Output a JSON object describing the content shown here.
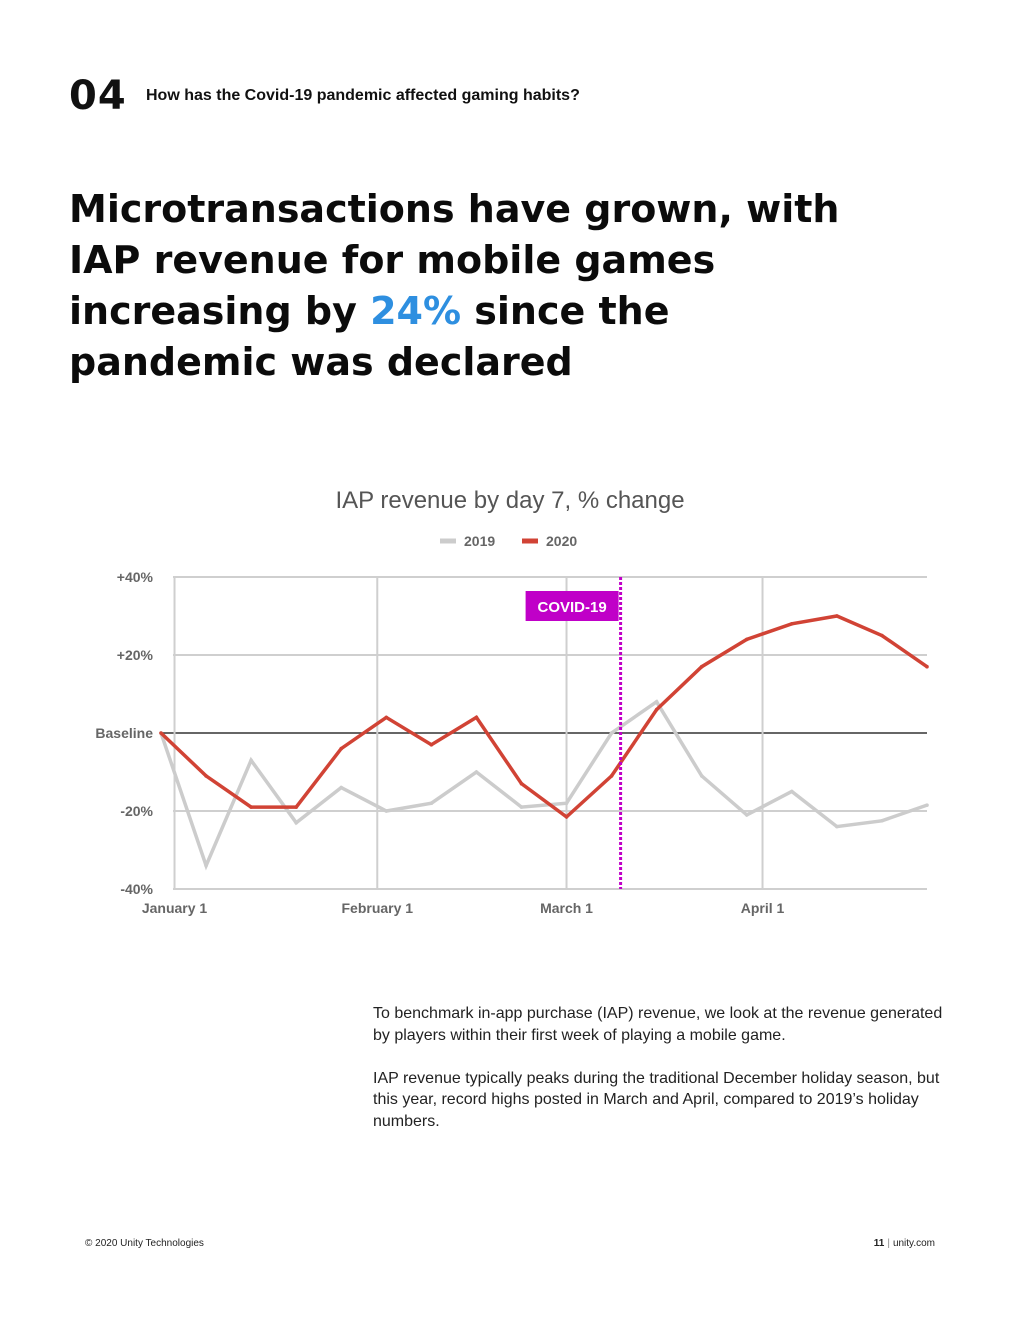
{
  "header": {
    "section_number": "04",
    "section_title": "How has the Covid-19 pandemic affected gaming habits?"
  },
  "headline": {
    "before": "Microtransactions have grown, with IAP revenue for mobile games increasing by ",
    "highlight": "24%",
    "after": " since the pandemic was declared"
  },
  "colors": {
    "accent": "#2e8fe0",
    "series_2019": "#cccccc",
    "series_2020": "#d14335",
    "covid_marker": "#c000c8"
  },
  "chart_data": {
    "type": "line",
    "title": "IAP revenue by day 7, % change",
    "xlabel": "",
    "ylabel": "",
    "ylim": [
      -40,
      40
    ],
    "xlim": [
      0,
      17
    ],
    "y_ticks": [
      {
        "value": 40,
        "label": "+40%"
      },
      {
        "value": 20,
        "label": "+20%"
      },
      {
        "value": 0,
        "label": "Baseline"
      },
      {
        "value": -20,
        "label": "-20%"
      },
      {
        "value": -40,
        "label": "-40%"
      }
    ],
    "x_ticks": [
      {
        "value": 0.3,
        "label": "January 1"
      },
      {
        "value": 4.8,
        "label": "February 1"
      },
      {
        "value": 9.0,
        "label": "March 1"
      },
      {
        "value": 13.35,
        "label": "April 1"
      }
    ],
    "x": [
      0,
      1,
      2,
      3,
      4,
      5,
      6,
      7,
      8,
      9,
      10,
      11,
      12,
      13,
      14,
      15,
      16,
      17
    ],
    "series": [
      {
        "name": "2019",
        "values": [
          0,
          -34,
          -7,
          -23,
          -14,
          -20,
          -18,
          -10,
          -19,
          -18,
          0,
          8,
          -11,
          -21,
          -15,
          -24,
          -22.5,
          -18.5
        ]
      },
      {
        "name": "2020",
        "values": [
          0,
          -11,
          -19,
          -19,
          -4,
          4,
          -3,
          4,
          -13,
          -21.5,
          -11,
          6,
          17,
          24,
          28,
          30,
          25,
          17
        ]
      }
    ],
    "annotations": [
      {
        "type": "vline",
        "x": 10.2,
        "label": "COVID-19"
      }
    ],
    "legend": "top-center",
    "grid": true
  },
  "body": {
    "paragraphs": [
      "To benchmark in-app purchase (IAP) revenue, we look at the revenue generated by players within their first week of playing a mobile game.",
      "IAP revenue typically peaks during the traditional December holiday season, but this year, record highs posted in March and April, compared to 2019’s holiday numbers."
    ]
  },
  "footer": {
    "copyright": "© 2020 Unity Technologies",
    "page_number": "11",
    "separator": "|",
    "website": "unity.com"
  }
}
